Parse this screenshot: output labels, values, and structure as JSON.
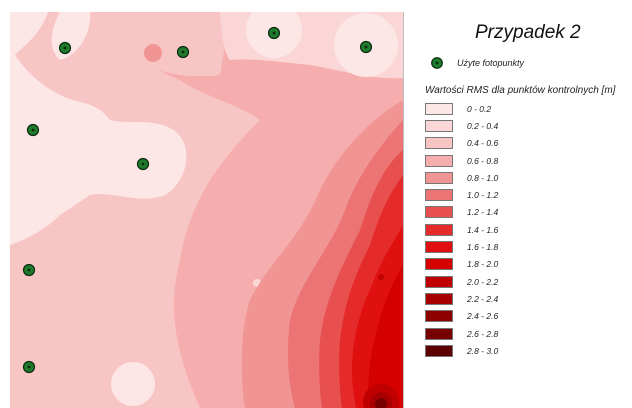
{
  "legend": {
    "title": "Przypadek 2",
    "gcp_label": "Użyte fotopunkty",
    "rms_title": "Wartości RMS dla punktów kontrolnych [m]",
    "classes": [
      {
        "label": "0 - 0.2",
        "color": "#fde6e6"
      },
      {
        "label": "0.2 - 0.4",
        "color": "#fbd6d6"
      },
      {
        "label": "0.4 - 0.6",
        "color": "#f8c5c5"
      },
      {
        "label": "0.6 - 0.8",
        "color": "#f5adad"
      },
      {
        "label": "0.8 - 1.0",
        "color": "#f19494"
      },
      {
        "label": "1.0 - 1.2",
        "color": "#ec7474"
      },
      {
        "label": "1.2 - 1.4",
        "color": "#e85050"
      },
      {
        "label": "1.4 - 1.6",
        "color": "#e52a2a"
      },
      {
        "label": "1.6 - 1.8",
        "color": "#e01010"
      },
      {
        "label": "1.8 - 2.0",
        "color": "#d50000"
      },
      {
        "label": "2.0 - 2.2",
        "color": "#c00000"
      },
      {
        "label": "2.2 - 2.4",
        "color": "#a80000"
      },
      {
        "label": "2.4 - 2.6",
        "color": "#8e0000"
      },
      {
        "label": "2.6 - 2.8",
        "color": "#760000"
      },
      {
        "label": "2.8 - 3.0",
        "color": "#5c0000"
      }
    ]
  },
  "gcp_color": "#1f7a2c"
}
